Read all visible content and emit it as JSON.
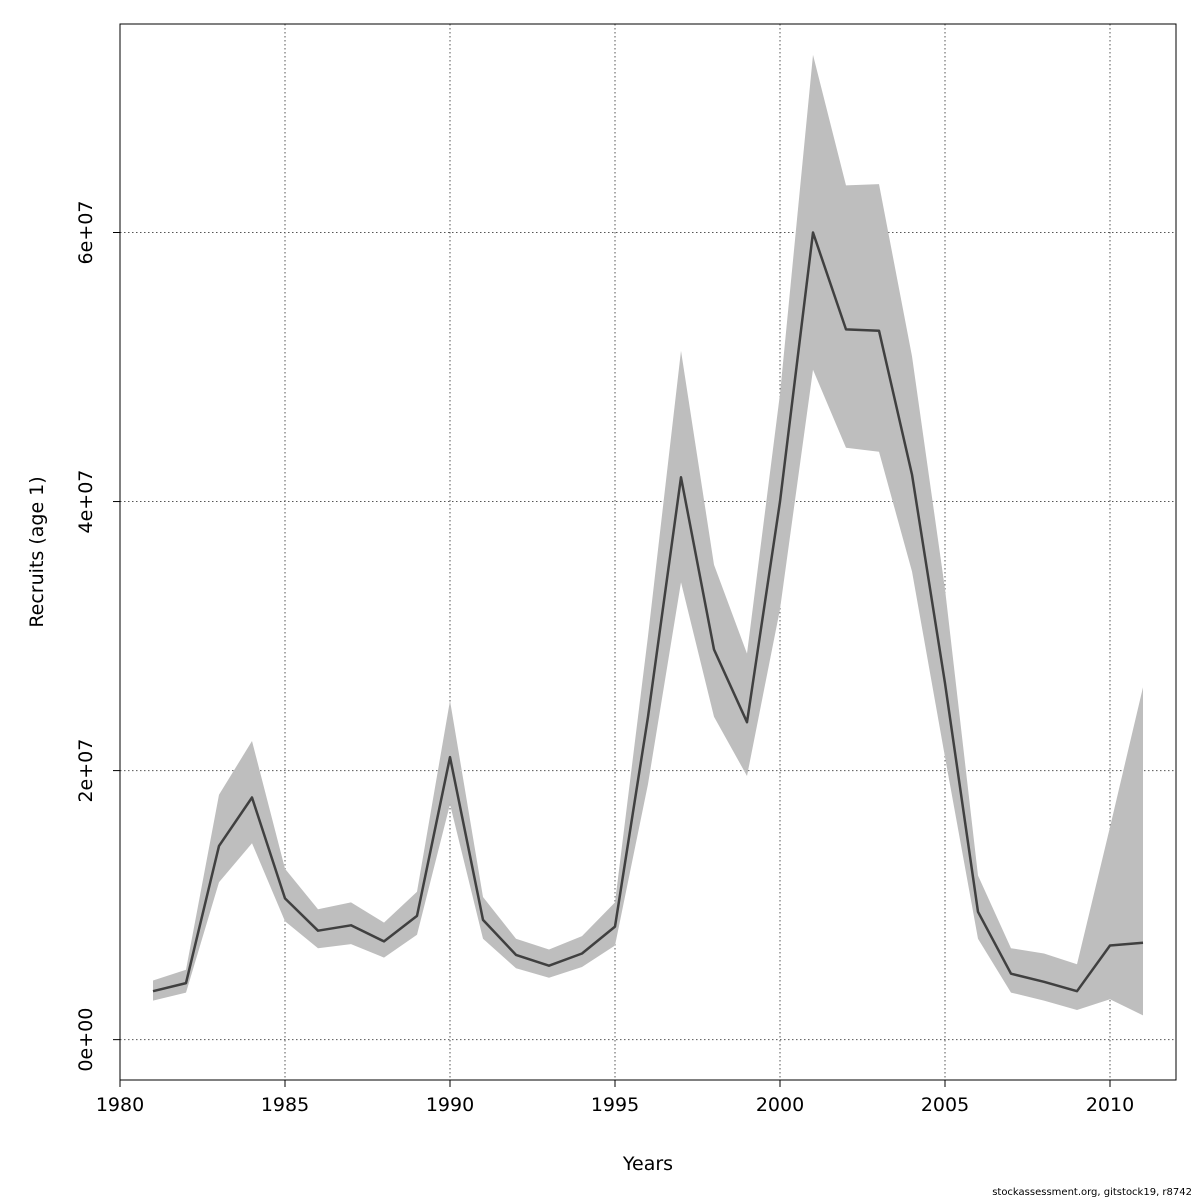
{
  "chart_data": {
    "type": "area",
    "xlabel": "Years",
    "ylabel": "Recruits (age 1)",
    "xlim": [
      1980,
      2012
    ],
    "ylim": [
      -3000000,
      75500000
    ],
    "x_ticks": [
      1980,
      1985,
      1990,
      1995,
      2000,
      2005,
      2010
    ],
    "x_tick_labels": [
      "1980",
      "1985",
      "1990",
      "1995",
      "2000",
      "2005",
      "2010"
    ],
    "y_ticks": [
      0,
      20000000,
      40000000,
      60000000
    ],
    "y_tick_labels": [
      "0e+00",
      "2e+07",
      "4e+07",
      "6e+07"
    ],
    "grid": true,
    "x": [
      1981,
      1982,
      1983,
      1984,
      1985,
      1986,
      1987,
      1988,
      1989,
      1990,
      1991,
      1992,
      1993,
      1994,
      1995,
      1996,
      1997,
      1998,
      1999,
      2000,
      2001,
      2002,
      2003,
      2004,
      2005,
      2006,
      2007,
      2008,
      2009,
      2010,
      2011
    ],
    "series": [
      {
        "role": "estimate",
        "color": "#404040",
        "values": [
          3600000,
          4200000,
          14400000,
          18000000,
          10500000,
          8100000,
          8500000,
          7300000,
          9200000,
          21000000,
          8900000,
          6300000,
          5500000,
          6400000,
          8400000,
          24000000,
          41800000,
          29000000,
          23600000,
          40000000,
          60000000,
          52800000,
          52700000,
          42000000,
          26500000,
          9500000,
          4900000,
          4300000,
          3600000,
          7000000,
          7200000
        ]
      },
      {
        "role": "lower",
        "values": [
          2900000,
          3500000,
          11700000,
          14600000,
          8800000,
          6800000,
          7100000,
          6100000,
          7800000,
          17500000,
          7500000,
          5300000,
          4600000,
          5400000,
          7000000,
          19000000,
          34000000,
          24000000,
          19600000,
          32000000,
          49800000,
          44000000,
          43700000,
          34800000,
          21000000,
          7500000,
          3500000,
          2900000,
          2200000,
          3000000,
          1800000
        ]
      },
      {
        "role": "upper",
        "color": "#bebebe",
        "values": [
          4400000,
          5200000,
          18200000,
          22200000,
          12700000,
          9700000,
          10200000,
          8700000,
          11000000,
          25200000,
          10600000,
          7500000,
          6700000,
          7700000,
          10200000,
          30000000,
          51200000,
          35300000,
          28700000,
          48000000,
          73200000,
          63500000,
          63600000,
          50800000,
          33500000,
          12200000,
          6800000,
          6400000,
          5600000,
          15800000,
          26200000
        ]
      }
    ]
  },
  "footnote": "stockassessment.org, gitstock19, r8742"
}
